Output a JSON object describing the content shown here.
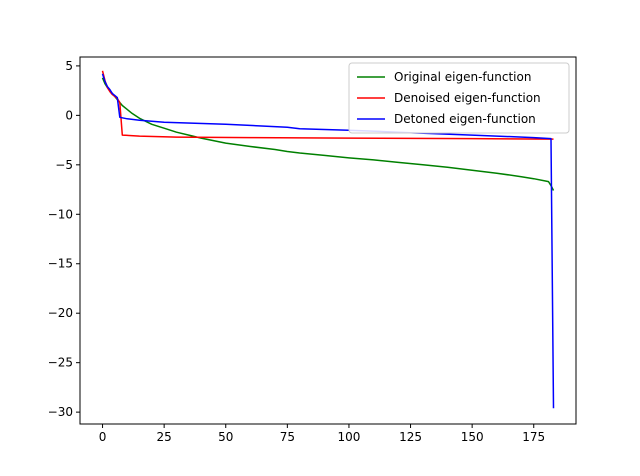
{
  "chart_data": {
    "type": "line",
    "title": "",
    "xlabel": "",
    "ylabel": "",
    "xlim": [
      -9.15,
      192.15
    ],
    "ylim": [
      -31.2,
      5.9
    ],
    "xticks": [
      0,
      25,
      50,
      75,
      100,
      125,
      150,
      175
    ],
    "yticks": [
      5,
      0,
      -5,
      -10,
      -15,
      -20,
      -25,
      -30
    ],
    "xtick_labels": [
      "0",
      "25",
      "50",
      "75",
      "100",
      "125",
      "150",
      "175"
    ],
    "ytick_labels": [
      "5",
      "0",
      "−5",
      "−10",
      "−15",
      "−20",
      "−25",
      "−30"
    ],
    "grid": false,
    "legend_position": "top-right",
    "series": [
      {
        "name": "Original eigen-function",
        "color": "#008000",
        "points": [
          [
            0,
            3.8
          ],
          [
            1,
            3.2
          ],
          [
            2,
            2.8
          ],
          [
            3,
            2.5
          ],
          [
            4,
            2.2
          ],
          [
            5,
            1.9
          ],
          [
            6,
            1.6
          ],
          [
            7,
            1.3
          ],
          [
            8,
            1.0
          ],
          [
            10,
            0.6
          ],
          [
            12,
            0.2
          ],
          [
            15,
            -0.3
          ],
          [
            20,
            -0.9
          ],
          [
            25,
            -1.3
          ],
          [
            30,
            -1.7
          ],
          [
            35,
            -2.0
          ],
          [
            40,
            -2.3
          ],
          [
            45,
            -2.55
          ],
          [
            50,
            -2.8
          ],
          [
            60,
            -3.15
          ],
          [
            70,
            -3.45
          ],
          [
            75,
            -3.65
          ],
          [
            80,
            -3.8
          ],
          [
            90,
            -4.05
          ],
          [
            100,
            -4.3
          ],
          [
            110,
            -4.5
          ],
          [
            120,
            -4.75
          ],
          [
            130,
            -5.0
          ],
          [
            140,
            -5.25
          ],
          [
            150,
            -5.55
          ],
          [
            160,
            -5.85
          ],
          [
            170,
            -6.2
          ],
          [
            175,
            -6.4
          ],
          [
            180,
            -6.65
          ],
          [
            181,
            -6.7
          ],
          [
            182,
            -7.1
          ],
          [
            183,
            -7.6
          ]
        ]
      },
      {
        "name": "Denoised eigen-function",
        "color": "#ff0000",
        "points": [
          [
            0,
            4.5
          ],
          [
            1,
            3.5
          ],
          [
            2,
            2.8
          ],
          [
            3,
            2.4
          ],
          [
            4,
            2.1
          ],
          [
            5,
            1.9
          ],
          [
            6,
            1.7
          ],
          [
            7,
            1.3
          ],
          [
            8,
            -2.0
          ],
          [
            15,
            -2.1
          ],
          [
            30,
            -2.2
          ],
          [
            60,
            -2.25
          ],
          [
            100,
            -2.3
          ],
          [
            150,
            -2.35
          ],
          [
            183,
            -2.4
          ]
        ]
      },
      {
        "name": "Detoned eigen-function",
        "color": "#0000ff",
        "points": [
          [
            0,
            4.2
          ],
          [
            1,
            3.4
          ],
          [
            2,
            2.9
          ],
          [
            3,
            2.6
          ],
          [
            4,
            2.2
          ],
          [
            5,
            2.0
          ],
          [
            6,
            1.8
          ],
          [
            7,
            -0.2
          ],
          [
            10,
            -0.35
          ],
          [
            15,
            -0.5
          ],
          [
            25,
            -0.7
          ],
          [
            50,
            -0.9
          ],
          [
            75,
            -1.2
          ],
          [
            80,
            -1.35
          ],
          [
            100,
            -1.5
          ],
          [
            125,
            -1.75
          ],
          [
            150,
            -2.0
          ],
          [
            175,
            -2.25
          ],
          [
            182,
            -2.35
          ],
          [
            183,
            -29.6
          ]
        ]
      }
    ]
  }
}
